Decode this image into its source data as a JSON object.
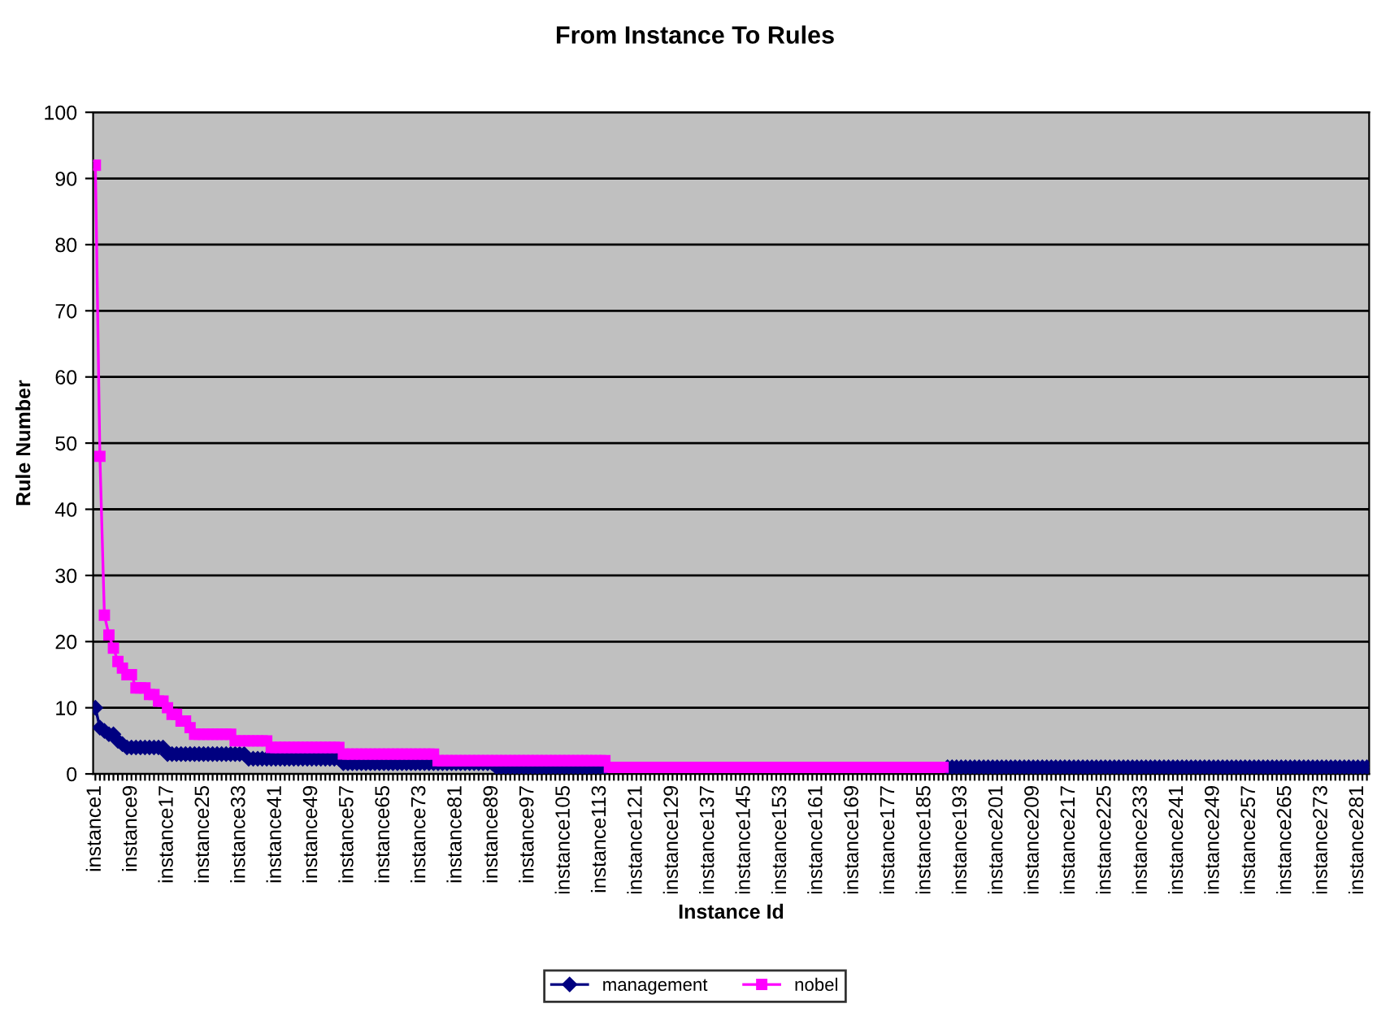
{
  "chart_data": {
    "type": "line",
    "title": "From Instance To Rules",
    "xlabel": "Instance Id",
    "ylabel": "Rule Number",
    "categories": [
      "instance1",
      null,
      null,
      null,
      null,
      null,
      null,
      null,
      "instance9",
      null,
      null,
      null,
      null,
      null,
      null,
      null,
      "instance17",
      null,
      null,
      null,
      null,
      null,
      null,
      null,
      "instance25",
      null,
      null,
      null,
      null,
      null,
      null,
      null,
      "instance33",
      null,
      null,
      null,
      null,
      null,
      null,
      null,
      "instance41",
      null,
      null,
      null,
      null,
      null,
      null,
      null,
      "instance49",
      null,
      null,
      null,
      null,
      null,
      null,
      null,
      "instance57",
      null,
      null,
      null,
      null,
      null,
      null,
      null,
      "instance65",
      null,
      null,
      null,
      null,
      null,
      null,
      null,
      "instance73",
      null,
      null,
      null,
      null,
      null,
      null,
      null,
      "instance81",
      null,
      null,
      null,
      null,
      null,
      null,
      null,
      "instance89",
      null,
      null,
      null,
      null,
      null,
      null,
      null,
      "instance97",
      null,
      null,
      null,
      null,
      null,
      null,
      null,
      "instance105",
      null,
      null,
      null,
      null,
      null,
      null,
      null,
      "instance113",
      null,
      null,
      null,
      null,
      null,
      null,
      null,
      "instance121",
      null,
      null,
      null,
      null,
      null,
      null,
      null,
      "instance129",
      null,
      null,
      null,
      null,
      null,
      null,
      null,
      "instance137",
      null,
      null,
      null,
      null,
      null,
      null,
      null,
      "instance145",
      null,
      null,
      null,
      null,
      null,
      null,
      null,
      "instance153",
      null,
      null,
      null,
      null,
      null,
      null,
      null,
      "instance161",
      null,
      null,
      null,
      null,
      null,
      null,
      null,
      "instance169",
      null,
      null,
      null,
      null,
      null,
      null,
      null,
      "instance177",
      null,
      null,
      null,
      null,
      null,
      null,
      null,
      "instance185",
      null,
      null,
      null,
      null,
      null,
      null,
      null,
      "instance193",
      null,
      null,
      null,
      null,
      null,
      null,
      null,
      "instance201",
      null,
      null,
      null,
      null,
      null,
      null,
      null,
      "instance209",
      null,
      null,
      null,
      null,
      null,
      null,
      null,
      "instance217",
      null,
      null,
      null,
      null,
      null,
      null,
      null,
      "instance225",
      null,
      null,
      null,
      null,
      null,
      null,
      null,
      "instance233",
      null,
      null,
      null,
      null,
      null,
      null,
      null,
      "instance241",
      null,
      null,
      null,
      null,
      null,
      null,
      null,
      "instance249",
      null,
      null,
      null,
      null,
      null,
      null,
      null,
      "instance257",
      null,
      null,
      null,
      null,
      null,
      null,
      null,
      "instance265",
      null,
      null,
      null,
      null,
      null,
      null,
      null,
      "instance273",
      null,
      null,
      null,
      null,
      null,
      null,
      null,
      "instance281",
      null,
      null
    ],
    "series": [
      {
        "name": "management",
        "color": "#000080",
        "marker": "diamond",
        "values": [
          10,
          7,
          6.5,
          6,
          6,
          5,
          4.5,
          4,
          4,
          4,
          4,
          4,
          4,
          4,
          4,
          4,
          3,
          3,
          3,
          3,
          3,
          3,
          3,
          3,
          3,
          3,
          3,
          3,
          3,
          3,
          3,
          3,
          3,
          3,
          2.3,
          2.3,
          2.3,
          2.3,
          2.3,
          2.3,
          2.3,
          2.3,
          2.3,
          2.3,
          2.3,
          2.3,
          2.3,
          2.3,
          2.3,
          2.3,
          2.3,
          2.3,
          2.3,
          2.3,
          2.3,
          1.6,
          1.6,
          1.6,
          1.6,
          1.6,
          1.6,
          1.6,
          1.6,
          1.6,
          1.6,
          1.6,
          1.6,
          1.6,
          1.6,
          1.6,
          1.6,
          1.6,
          1.6,
          1.6,
          1.6,
          1.6,
          1.6,
          1.6,
          1.6,
          1.6,
          1.6,
          1.6,
          1.6,
          1.6,
          1.6,
          1.6,
          1.6,
          1.6,
          1.6,
          1,
          1,
          1,
          1,
          1,
          1,
          1,
          1,
          1,
          1,
          1,
          1,
          1,
          1,
          1,
          1,
          1,
          1,
          1,
          1,
          1,
          1,
          1,
          1,
          1,
          null,
          null,
          null,
          null,
          null,
          null,
          null,
          null,
          null,
          null,
          null,
          null,
          null,
          null,
          null,
          null,
          null,
          null,
          null,
          null,
          null,
          null,
          null,
          null,
          null,
          null,
          null,
          null,
          null,
          null,
          null,
          null,
          null,
          null,
          null,
          null,
          null,
          null,
          null,
          null,
          null,
          null,
          null,
          null,
          null,
          null,
          null,
          null,
          null,
          null,
          null,
          null,
          null,
          null,
          null,
          null,
          null,
          null,
          null,
          null,
          null,
          null,
          null,
          null,
          null,
          null,
          null,
          null,
          null,
          null,
          null,
          null,
          null,
          null,
          null,
          1,
          1,
          1,
          1,
          1,
          1,
          1,
          1,
          1,
          1,
          1,
          1,
          1,
          1,
          1,
          1,
          1,
          1,
          1,
          1,
          1,
          1,
          1,
          1,
          1,
          1,
          1,
          1,
          1,
          1,
          1,
          1,
          1,
          1,
          1,
          1,
          1,
          1,
          1,
          1,
          1,
          1,
          1,
          1,
          1,
          1,
          1,
          1,
          1,
          1,
          1,
          1,
          1,
          1,
          1,
          1,
          1,
          1,
          1,
          1,
          1,
          1,
          1,
          1,
          1,
          1,
          1,
          1,
          1,
          1,
          1,
          1,
          1,
          1,
          1,
          1,
          1,
          1,
          1,
          1,
          1,
          1,
          1,
          1,
          1,
          1,
          1,
          1,
          1,
          1,
          1,
          1,
          1,
          1
        ]
      },
      {
        "name": "nobel",
        "color": "#ff00ff",
        "marker": "square",
        "values": [
          92,
          48,
          24,
          21,
          19,
          17,
          16,
          15,
          15,
          13,
          13,
          13,
          12,
          12,
          11,
          11,
          10,
          9,
          9,
          8,
          8,
          7,
          6,
          6,
          6,
          6,
          6,
          6,
          6,
          6,
          6,
          5,
          5,
          5,
          5,
          5,
          5,
          5,
          5,
          4,
          4,
          4,
          4,
          4,
          4,
          4,
          4,
          4,
          4,
          4,
          4,
          4,
          4,
          4,
          4,
          3,
          3,
          3,
          3,
          3,
          3,
          3,
          3,
          3,
          3,
          3,
          3,
          3,
          3,
          3,
          3,
          3,
          3,
          3,
          3,
          3,
          2,
          2,
          2,
          2,
          2,
          2,
          2,
          2,
          2,
          2,
          2,
          2,
          2,
          2,
          2,
          2,
          2,
          2,
          2,
          2,
          2,
          2,
          2,
          2,
          2,
          2,
          2,
          2,
          2,
          2,
          2,
          2,
          2,
          2,
          2,
          2,
          2,
          2,
          1,
          1,
          1,
          1,
          1,
          1,
          1,
          1,
          1,
          1,
          1,
          1,
          1,
          1,
          1,
          1,
          1,
          1,
          1,
          1,
          1,
          1,
          1,
          1,
          1,
          1,
          1,
          1,
          1,
          1,
          1,
          1,
          1,
          1,
          1,
          1,
          1,
          1,
          1,
          1,
          1,
          1,
          1,
          1,
          1,
          1,
          1,
          1,
          1,
          1,
          1,
          1,
          1,
          1,
          1,
          1,
          1,
          1,
          1,
          1,
          1,
          1,
          1,
          1,
          1,
          1,
          1,
          1,
          1,
          1,
          1,
          1,
          1,
          1,
          1,
          null,
          null,
          null,
          null,
          null,
          null,
          null,
          null,
          null,
          null,
          null,
          null,
          null,
          null,
          null,
          null,
          null,
          null,
          null,
          null,
          null,
          null,
          null,
          null,
          null,
          null,
          null,
          null,
          null,
          null,
          null,
          null,
          null,
          null,
          null,
          null,
          null,
          null,
          null,
          null,
          null,
          null,
          null,
          null,
          null,
          null,
          null,
          null,
          null,
          null,
          null,
          null,
          null,
          null,
          null,
          null,
          null,
          null,
          null,
          null,
          null,
          null,
          null,
          null,
          null,
          null,
          null,
          null,
          null,
          null,
          null,
          null,
          null,
          null,
          null,
          null,
          null,
          null,
          null,
          null,
          null,
          null,
          null,
          null,
          null,
          null,
          null,
          null,
          null,
          null,
          null,
          null,
          null,
          null
        ]
      }
    ],
    "ylim": [
      0,
      100
    ],
    "yticks": [
      0,
      10,
      20,
      30,
      40,
      50,
      60,
      70,
      80,
      90,
      100
    ],
    "grid": "y",
    "legend": "bottom",
    "line_style": "solid"
  }
}
